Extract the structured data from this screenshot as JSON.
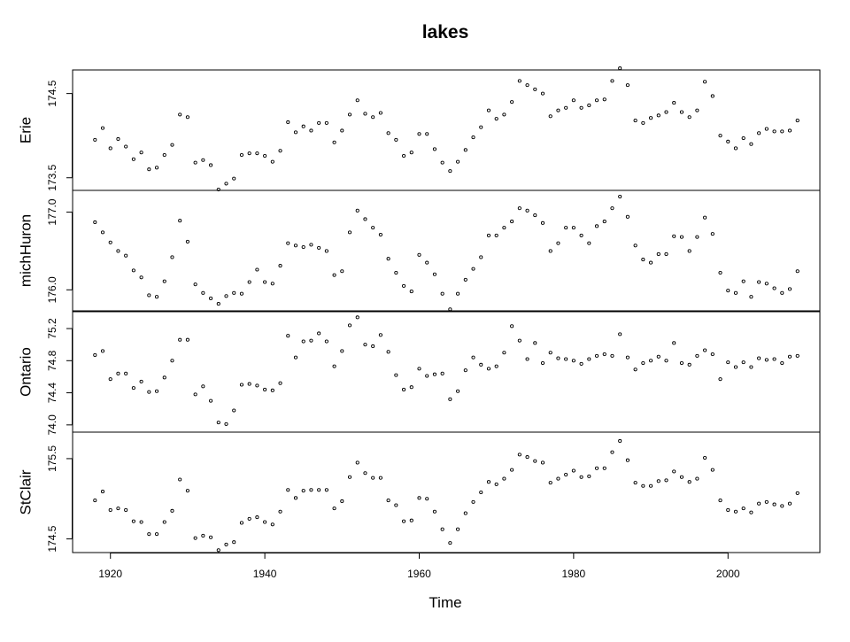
{
  "chart_data": {
    "type": "scatter",
    "title": "lakes",
    "xlabel": "Time",
    "xlim": [
      1915.1,
      2011.9
    ],
    "x_ticks": [
      1920,
      1940,
      1960,
      1980,
      2000
    ],
    "x_tick_labels": [
      "1920",
      "1940",
      "1960",
      "1980",
      "2000"
    ],
    "x": [
      1918,
      1919,
      1920,
      1921,
      1922,
      1923,
      1924,
      1925,
      1926,
      1927,
      1928,
      1929,
      1930,
      1931,
      1932,
      1933,
      1934,
      1935,
      1936,
      1937,
      1938,
      1939,
      1940,
      1941,
      1942,
      1943,
      1944,
      1945,
      1946,
      1947,
      1948,
      1949,
      1950,
      1951,
      1952,
      1953,
      1954,
      1955,
      1956,
      1957,
      1958,
      1959,
      1960,
      1961,
      1962,
      1963,
      1964,
      1965,
      1966,
      1967,
      1968,
      1969,
      1970,
      1971,
      1972,
      1973,
      1974,
      1975,
      1976,
      1977,
      1978,
      1979,
      1980,
      1981,
      1982,
      1983,
      1984,
      1985,
      1986,
      1987,
      1988,
      1989,
      1990,
      1991,
      1992,
      1993,
      1994,
      1995,
      1996,
      1997,
      1998,
      1999,
      2000,
      2001,
      2002,
      2003,
      2004,
      2005,
      2006,
      2007,
      2008,
      2009
    ],
    "panels": [
      {
        "name": "Erie",
        "ylim": [
          173.35,
          174.78
        ],
        "y_ticks": [
          173.5,
          174.5
        ],
        "y_tick_labels": [
          "173.5",
          "174.5"
        ],
        "values": [
          173.95,
          174.09,
          173.85,
          173.96,
          173.87,
          173.72,
          173.8,
          173.6,
          173.62,
          173.77,
          173.89,
          174.25,
          174.22,
          173.68,
          173.71,
          173.65,
          173.36,
          173.43,
          173.49,
          173.77,
          173.79,
          173.79,
          173.76,
          173.69,
          173.82,
          174.16,
          174.04,
          174.11,
          174.06,
          174.15,
          174.15,
          173.92,
          174.06,
          174.25,
          174.42,
          174.26,
          174.22,
          174.27,
          174.03,
          173.95,
          173.76,
          173.8,
          174.02,
          174.02,
          173.84,
          173.68,
          173.58,
          173.69,
          173.83,
          173.98,
          174.1,
          174.3,
          174.2,
          174.25,
          174.4,
          174.65,
          174.6,
          174.55,
          174.5,
          174.23,
          174.3,
          174.33,
          174.42,
          174.33,
          174.36,
          174.42,
          174.43,
          174.65,
          174.8,
          174.6,
          174.18,
          174.15,
          174.21,
          174.24,
          174.28,
          174.39,
          174.28,
          174.22,
          174.3,
          174.64,
          174.47,
          174.0,
          173.93,
          173.85,
          173.97,
          173.9,
          174.03,
          174.08,
          174.05,
          174.05,
          174.06,
          174.18
        ]
      },
      {
        "name": "michHuron",
        "ylim": [
          175.73,
          177.28
        ],
        "y_ticks": [
          176.0,
          177.0
        ],
        "y_tick_labels": [
          "176.0",
          "177.0"
        ],
        "values": [
          176.87,
          176.74,
          176.61,
          176.5,
          176.44,
          176.25,
          176.16,
          175.93,
          175.91,
          176.11,
          176.42,
          176.89,
          176.62,
          176.07,
          175.96,
          175.89,
          175.82,
          175.92,
          175.96,
          175.95,
          176.1,
          176.26,
          176.1,
          176.08,
          176.31,
          176.6,
          176.57,
          176.55,
          176.58,
          176.54,
          176.5,
          176.19,
          176.24,
          176.74,
          177.02,
          176.91,
          176.8,
          176.71,
          176.4,
          176.22,
          176.05,
          175.98,
          176.45,
          176.35,
          176.2,
          175.95,
          175.75,
          175.95,
          176.13,
          176.27,
          176.42,
          176.7,
          176.7,
          176.8,
          176.88,
          177.05,
          177.02,
          176.96,
          176.86,
          176.5,
          176.6,
          176.8,
          176.8,
          176.7,
          176.6,
          176.82,
          176.88,
          177.05,
          177.2,
          176.94,
          176.57,
          176.39,
          176.35,
          176.46,
          176.46,
          176.69,
          176.68,
          176.5,
          176.68,
          176.93,
          176.72,
          176.22,
          175.99,
          175.96,
          176.11,
          175.91,
          176.1,
          176.08,
          176.02,
          175.96,
          176.01,
          176.24
        ]
      },
      {
        "name": "Ontario",
        "ylim": [
          73.91,
          75.41
        ],
        "y_ticks": [
          74.0,
          74.4,
          74.8,
          75.2
        ],
        "y_tick_labels": [
          "74.0",
          "74.4",
          "74.8",
          "75.2"
        ],
        "values": [
          74.87,
          74.92,
          74.57,
          74.64,
          74.64,
          74.46,
          74.54,
          74.41,
          74.42,
          74.59,
          74.8,
          75.06,
          75.06,
          74.38,
          74.48,
          74.3,
          74.03,
          74.01,
          74.18,
          74.5,
          74.51,
          74.49,
          74.44,
          74.43,
          74.52,
          75.11,
          74.84,
          75.04,
          75.05,
          75.14,
          75.04,
          74.73,
          74.92,
          75.24,
          75.34,
          75.0,
          74.98,
          75.12,
          74.91,
          74.62,
          74.44,
          74.47,
          74.7,
          74.61,
          74.63,
          74.64,
          74.32,
          74.42,
          74.68,
          74.84,
          74.75,
          74.7,
          74.73,
          74.9,
          75.23,
          75.05,
          74.82,
          75.02,
          74.77,
          74.9,
          74.83,
          74.82,
          74.8,
          74.76,
          74.82,
          74.86,
          74.88,
          74.86,
          75.13,
          74.84,
          74.69,
          74.77,
          74.8,
          74.85,
          74.8,
          75.02,
          74.77,
          74.75,
          74.86,
          74.93,
          74.88,
          74.57,
          74.78,
          74.72,
          74.78,
          74.72,
          74.83,
          74.81,
          74.82,
          74.77,
          74.85,
          74.86
        ]
      },
      {
        "name": "StClair",
        "ylim": [
          174.33,
          175.83
        ],
        "y_ticks": [
          174.5,
          175.5
        ],
        "y_tick_labels": [
          "174.5",
          "175.5"
        ],
        "values": [
          174.98,
          175.09,
          174.86,
          174.88,
          174.86,
          174.72,
          174.71,
          174.56,
          174.56,
          174.71,
          174.85,
          175.24,
          175.1,
          174.51,
          174.54,
          174.52,
          174.36,
          174.43,
          174.46,
          174.7,
          174.75,
          174.77,
          174.71,
          174.68,
          174.84,
          175.11,
          175.01,
          175.1,
          175.11,
          175.11,
          175.11,
          174.88,
          174.97,
          175.27,
          175.45,
          175.32,
          175.26,
          175.26,
          174.98,
          174.92,
          174.72,
          174.73,
          175.01,
          175.0,
          174.84,
          174.62,
          174.45,
          174.62,
          174.82,
          174.96,
          175.08,
          175.21,
          175.18,
          175.25,
          175.36,
          175.55,
          175.52,
          175.47,
          175.45,
          175.2,
          175.25,
          175.3,
          175.35,
          175.27,
          175.28,
          175.38,
          175.38,
          175.58,
          175.72,
          175.48,
          175.2,
          175.16,
          175.16,
          175.22,
          175.23,
          175.34,
          175.27,
          175.21,
          175.25,
          175.51,
          175.36,
          174.98,
          174.86,
          174.84,
          174.88,
          174.83,
          174.94,
          174.96,
          174.93,
          174.91,
          174.94,
          175.07
        ]
      }
    ]
  }
}
